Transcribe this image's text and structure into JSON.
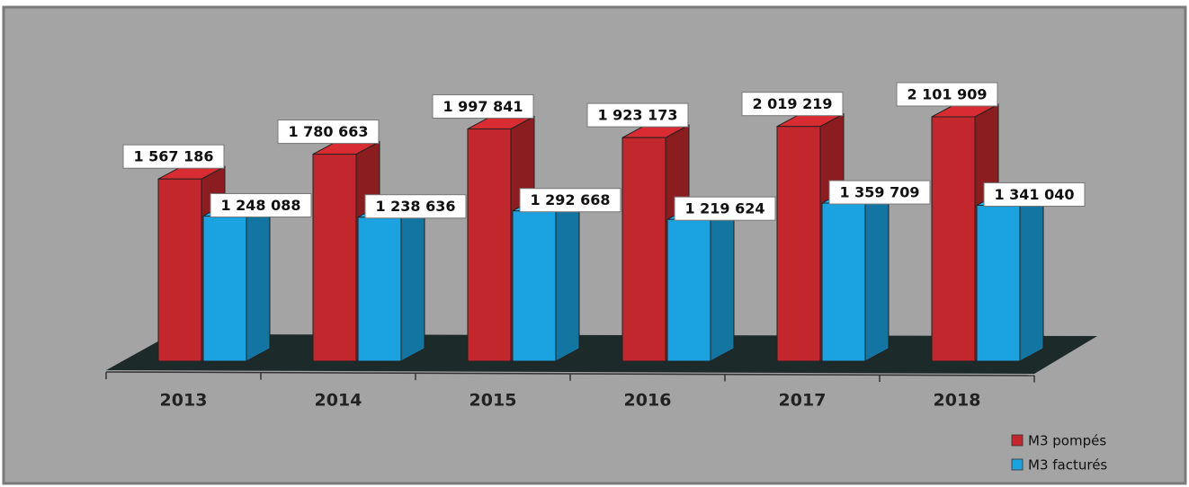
{
  "chart_data": {
    "type": "bar3d",
    "categories": [
      "2013",
      "2014",
      "2015",
      "2016",
      "2017",
      "2018"
    ],
    "series": [
      {
        "name": "M3 pompés",
        "color": "#c1272d",
        "values": [
          1567186,
          1780663,
          1997841,
          1923173,
          2019219,
          2101909
        ],
        "value_labels": [
          "1 567 186",
          "1 780 663",
          "1 997 841",
          "1 923 173",
          "2 019 219",
          "2 101 909"
        ]
      },
      {
        "name": "M3 facturés",
        "color": "#1aa3e0",
        "values": [
          1248088,
          1238636,
          1292668,
          1219624,
          1359709,
          1341040
        ],
        "value_labels": [
          "1 248 088",
          "1 238 636",
          "1 292 668",
          "1 219 624",
          "1 359 709",
          "1 341 040"
        ]
      }
    ],
    "legend": "bottom-right"
  }
}
